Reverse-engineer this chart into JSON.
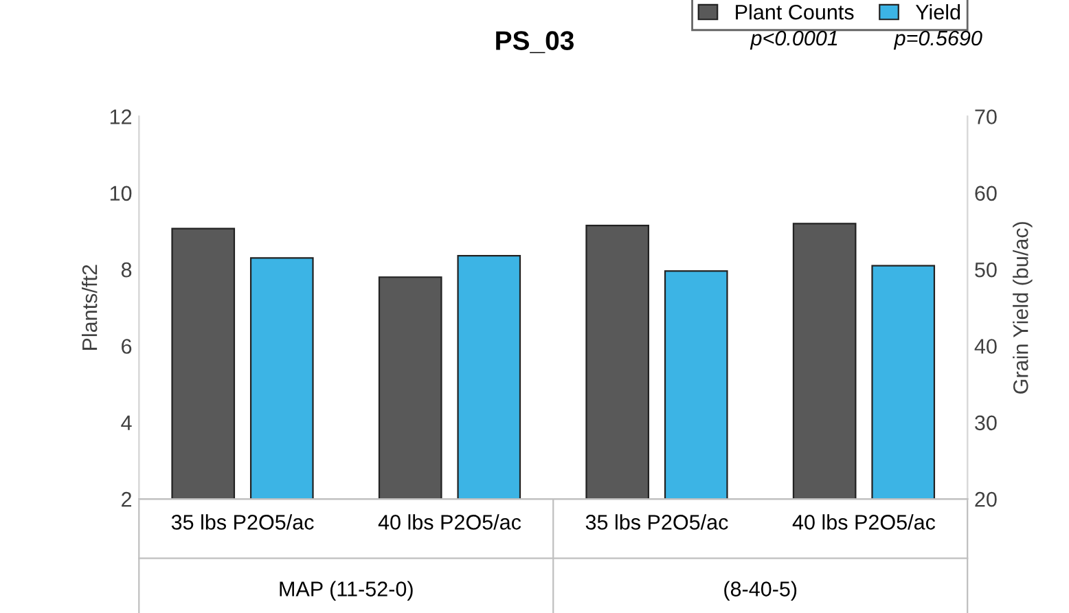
{
  "chart_data": {
    "type": "bar",
    "title": "PS_03",
    "ylabel": "Plants/ft2",
    "y2label": "Grain Yield (bu/ac)",
    "categories": [
      "35 lbs P2O5/ac",
      "40 lbs P2O5/ac",
      "35 lbs P2O5/ac",
      "40 lbs P2O5/ac"
    ],
    "series": [
      {
        "name": "Plant Counts",
        "color": "#595959",
        "values": [
          9.07,
          7.8,
          9.15,
          9.2
        ]
      },
      {
        "name": "Yield",
        "color": "#3cb4e5",
        "axis": "y2",
        "values": [
          51.5,
          51.8,
          49.8,
          50.5
        ]
      }
    ],
    "ylim": [
      2,
      12
    ],
    "yticks": [
      2,
      4,
      6,
      8,
      10,
      12
    ],
    "y2lim": [
      20,
      70
    ],
    "y2ticks": [
      20,
      30,
      40,
      50,
      60,
      70
    ],
    "grid": false,
    "legend": "top right",
    "annotations": [
      "MAP (11-52-0)",
      "(8-40-5)",
      "p<0.0001",
      "p=0.5690"
    ]
  }
}
